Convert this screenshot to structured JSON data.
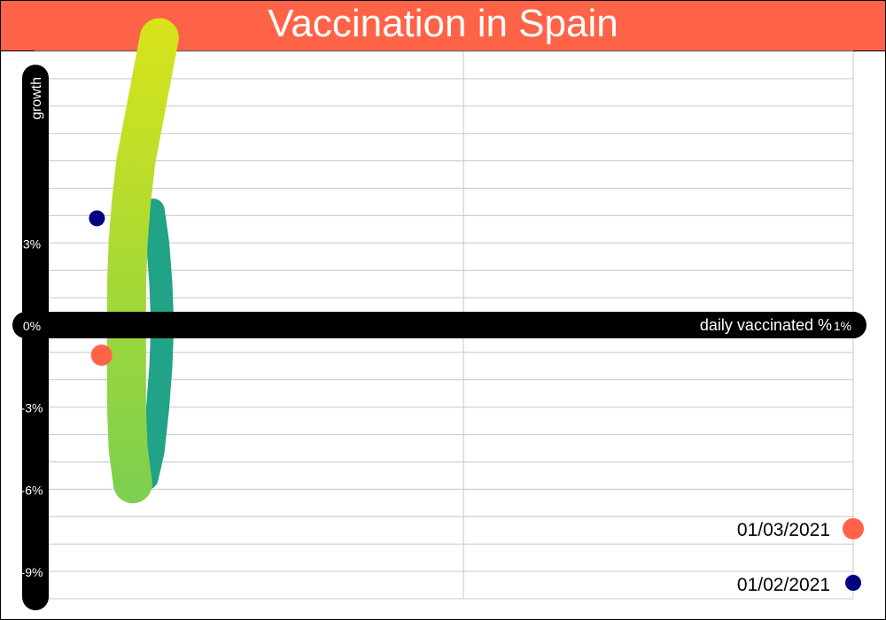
{
  "title": "Vaccination in Spain",
  "colors": {
    "title_bar": "#FF6347",
    "background": "#FFFFFF",
    "grid": "#C8C8C8",
    "axis": "#000000",
    "axis_text": "#FFFFFF",
    "point_start": "#000080",
    "point_end": "#FF6347",
    "trail_light": "#D6E31B",
    "trail_mid": "#7ED04E",
    "trail_dark": "#20A386"
  },
  "chart_data": {
    "type": "scatter",
    "title": "Vaccination in Spain",
    "xlabel": "daily vaccinated %",
    "ylabel": "growth",
    "xlim": [
      -0.05,
      1.0
    ],
    "ylim": [
      -10.0,
      10.0
    ],
    "x_ticks": [
      {
        "value": 0.0,
        "label": "0%"
      },
      {
        "value": 1.0,
        "label": "1%"
      }
    ],
    "y_ticks": [
      {
        "value": 3.0,
        "label": "3%"
      },
      {
        "value": 0.0,
        "label": "0%"
      },
      {
        "value": -3.0,
        "label": "-3%"
      },
      {
        "value": -6.0,
        "label": "-6%"
      },
      {
        "value": -9.0,
        "label": "-9%"
      }
    ],
    "grid": true,
    "legend_position": "bottom-right",
    "legend": [
      {
        "label": "01/03/2021",
        "color": "#FF6347"
      },
      {
        "label": "01/02/2021",
        "color": "#000080"
      }
    ],
    "points": [
      {
        "x": 0.036,
        "y": -1.1,
        "color": "#FF6347"
      },
      {
        "x": 0.03,
        "y": 3.9,
        "color": "#000080"
      }
    ],
    "trail_light": [
      {
        "x": 0.11,
        "y": 10.5
      },
      {
        "x": 0.1,
        "y": 9.0
      },
      {
        "x": 0.09,
        "y": 7.5
      },
      {
        "x": 0.08,
        "y": 6.0
      },
      {
        "x": 0.074,
        "y": 4.5
      },
      {
        "x": 0.07,
        "y": 3.0
      },
      {
        "x": 0.068,
        "y": 1.5
      },
      {
        "x": 0.068,
        "y": 0.0
      },
      {
        "x": 0.068,
        "y": -1.5
      },
      {
        "x": 0.068,
        "y": -3.0
      },
      {
        "x": 0.07,
        "y": -4.5
      },
      {
        "x": 0.076,
        "y": -5.8
      }
    ],
    "trail_dark": [
      {
        "x": 0.102,
        "y": 4.2
      },
      {
        "x": 0.108,
        "y": 3.0
      },
      {
        "x": 0.112,
        "y": 1.5
      },
      {
        "x": 0.114,
        "y": 0.0
      },
      {
        "x": 0.112,
        "y": -1.5
      },
      {
        "x": 0.108,
        "y": -3.0
      },
      {
        "x": 0.102,
        "y": -4.6
      },
      {
        "x": 0.094,
        "y": -5.6
      }
    ]
  }
}
